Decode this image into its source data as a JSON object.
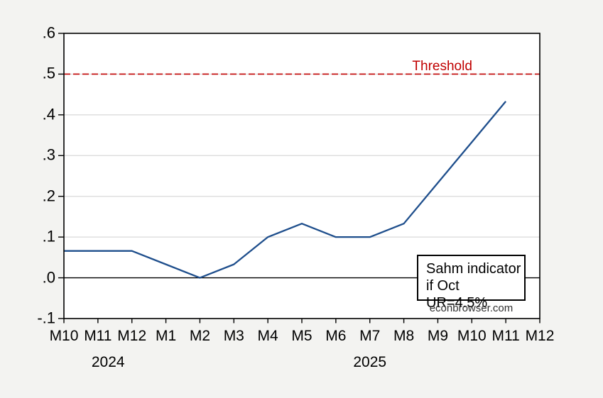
{
  "watermark": "econbrowser.com",
  "annotation_box": {
    "line1": "Sahm indicator",
    "line2": "if Oct UR=4.5%"
  },
  "colors": {
    "background": "#f3f3f1",
    "plot_background": "#ffffff",
    "grid": "#d9d9d9",
    "axis": "#000000",
    "series_blue": "#1e4e8c",
    "threshold_red": "#c00000"
  },
  "chart_data": {
    "type": "line",
    "title": "",
    "xlabel": "",
    "ylabel": "",
    "grid": "horizontal",
    "zero_line": true,
    "legend_position": "none",
    "categories": [
      "M10",
      "M11",
      "M12",
      "M1",
      "M2",
      "M3",
      "M4",
      "M5",
      "M6",
      "M7",
      "M8",
      "M9",
      "M10",
      "M11",
      "M12"
    ],
    "year_labels": [
      {
        "label": "2024",
        "at_index": 1.3
      },
      {
        "label": "2025",
        "at_index": 9.0
      }
    ],
    "series": [
      {
        "name": "Sahm indicator if Oct UR=4.5%",
        "color": "#1e4e8c",
        "values": [
          0.066,
          0.066,
          0.066,
          0.033,
          0.0,
          0.033,
          0.1,
          0.133,
          0.1,
          0.1,
          0.133,
          0.233,
          0.333,
          0.433
        ]
      }
    ],
    "threshold": {
      "value": 0.5,
      "label": "Threshold",
      "color": "#c00000",
      "style": "dashed",
      "label_at_fraction": 0.795
    },
    "ylim": [
      -0.1,
      0.6
    ],
    "yticks": [
      {
        "value": 0.6,
        "label": ".6"
      },
      {
        "value": 0.5,
        "label": ".5"
      },
      {
        "value": 0.4,
        "label": ".4"
      },
      {
        "value": 0.3,
        "label": ".3"
      },
      {
        "value": 0.2,
        "label": ".2"
      },
      {
        "value": 0.1,
        "label": ".1"
      },
      {
        "value": 0.0,
        "label": ".0"
      },
      {
        "value": -0.1,
        "label": "-.1"
      }
    ]
  }
}
